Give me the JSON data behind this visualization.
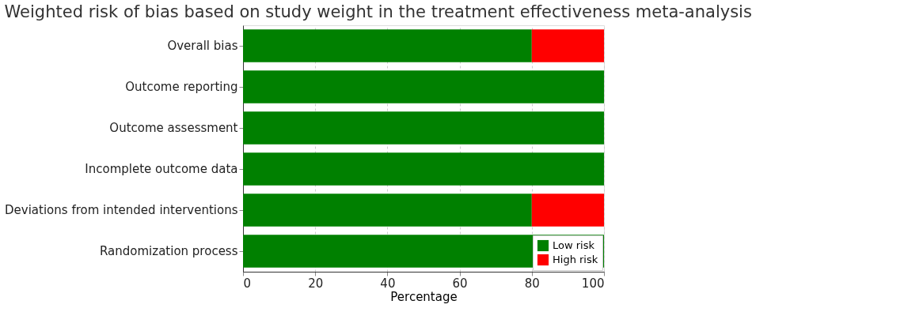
{
  "chart_data": {
    "type": "bar",
    "orientation": "horizontal",
    "stacked": true,
    "title": "Weighted risk of bias based on study weight in the treatment effectiveness meta-analysis",
    "xlabel": "Percentage",
    "categories": [
      "Overall bias",
      "Outcome reporting",
      "Outcome assessment",
      "Incomplete outcome data",
      "Deviations from intended interventions",
      "Randomization process"
    ],
    "series": [
      {
        "name": "Low risk",
        "color": "#008000",
        "values": [
          80,
          100,
          100,
          100,
          80,
          100
        ]
      },
      {
        "name": "High risk",
        "color": "#ff0000",
        "values": [
          20,
          0,
          0,
          0,
          20,
          0
        ]
      }
    ],
    "xlim": [
      0,
      100
    ],
    "xticks": [
      0,
      20,
      40,
      60,
      80,
      100
    ],
    "grid": true,
    "legend": "bottom right"
  }
}
